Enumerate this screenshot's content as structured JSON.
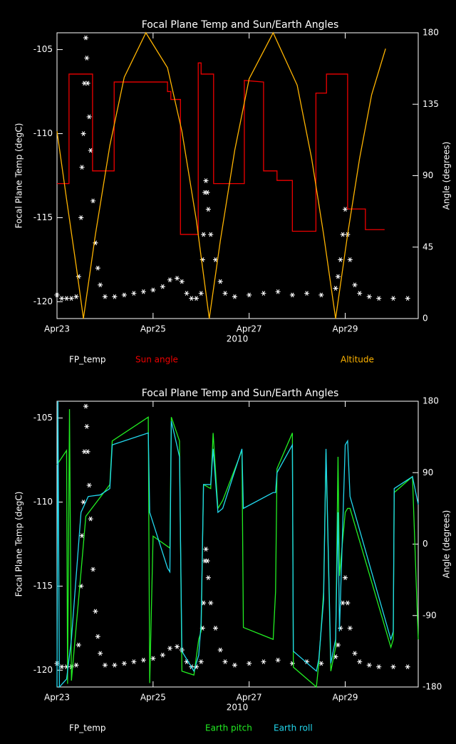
{
  "chart_data": [
    {
      "type": "line",
      "title": "Focal Plane Temp and Sun/Earth Angles",
      "ylabel": "Focal Plane Temp (degC)",
      "y2label": "Angle (degrees)",
      "xlabel": "2010",
      "xlim": [
        23,
        30.52
      ],
      "xticks": [
        {
          "value": 23,
          "label": "Apr23"
        },
        {
          "value": 25,
          "label": "Apr25"
        },
        {
          "value": 27,
          "label": "Apr27"
        },
        {
          "value": 29,
          "label": "Apr29"
        }
      ],
      "ylim": [
        -121,
        -104
      ],
      "yticks": [
        -105,
        -110,
        -115,
        -120
      ],
      "y2lim": [
        0,
        180
      ],
      "y2ticks": [
        0,
        45,
        90,
        135,
        180
      ],
      "series": [
        {
          "name": "FP_temp",
          "color": "#ffffff",
          "marker": "asterisk",
          "x": [
            23.0,
            23.1,
            23.2,
            23.3,
            23.4,
            23.45,
            23.5,
            23.52,
            23.55,
            23.57,
            23.6,
            23.62,
            23.64,
            23.67,
            23.7,
            23.75,
            23.8,
            23.85,
            23.9,
            24.0,
            24.2,
            24.4,
            24.6,
            24.8,
            25.0,
            25.2,
            25.35,
            25.5,
            25.6,
            25.7,
            25.8,
            25.9,
            26.0,
            26.03,
            26.05,
            26.08,
            26.1,
            26.13,
            26.15,
            26.2,
            26.3,
            26.4,
            26.5,
            26.7,
            27.0,
            27.3,
            27.6,
            27.9,
            28.2,
            28.5,
            28.8,
            28.85,
            28.9,
            28.95,
            29.0,
            29.05,
            29.1,
            29.2,
            29.3,
            29.5,
            29.7,
            30.0,
            30.3
          ],
          "values": [
            -119.6,
            -119.8,
            -119.8,
            -119.8,
            -119.7,
            -118.5,
            -115,
            -112,
            -110,
            -107,
            -104.3,
            -105.5,
            -107,
            -109,
            -111,
            -114,
            -116.5,
            -118,
            -119,
            -119.7,
            -119.7,
            -119.6,
            -119.5,
            -119.4,
            -119.3,
            -119.1,
            -118.7,
            -118.6,
            -118.8,
            -119.5,
            -119.8,
            -119.8,
            -119.5,
            -117.5,
            -116,
            -113.5,
            -112.8,
            -113.5,
            -114.5,
            -116,
            -117.5,
            -118.8,
            -119.5,
            -119.7,
            -119.6,
            -119.5,
            -119.4,
            -119.6,
            -119.5,
            -119.6,
            -119.2,
            -118.5,
            -117.5,
            -116,
            -114.5,
            -116,
            -117.5,
            -119,
            -119.5,
            -119.7,
            -119.8,
            -119.8,
            -119.8
          ]
        },
        {
          "name": "Sun angle",
          "color": "#ee0000",
          "axis": "y2",
          "x": [
            23.0,
            23.25,
            23.25,
            23.74,
            23.74,
            24.19,
            24.19,
            25.3,
            25.3,
            25.37,
            25.37,
            25.57,
            25.57,
            25.94,
            25.94,
            26.0,
            26.0,
            26.26,
            26.26,
            26.9,
            26.9,
            27.3,
            27.3,
            27.58,
            27.58,
            27.9,
            27.9,
            28.39,
            28.39,
            28.61,
            28.61,
            29.05,
            29.05,
            29.42,
            29.42,
            29.82
          ],
          "values": [
            85,
            85,
            154,
            154,
            93,
            93,
            149,
            149,
            143,
            143,
            138,
            138,
            53,
            53,
            161,
            161,
            154,
            154,
            85,
            85,
            150,
            149,
            93,
            93,
            87,
            87,
            55,
            55,
            142,
            142,
            154,
            154,
            69,
            69,
            56,
            56
          ]
        },
        {
          "name": "Altitude",
          "color": "#ffb400",
          "axis": "y2",
          "x": [
            23.0,
            23.2,
            23.4,
            23.55,
            23.8,
            24.1,
            24.4,
            24.85,
            25.3,
            25.6,
            25.9,
            26.17,
            26.4,
            26.7,
            27.0,
            27.5,
            28.0,
            28.3,
            28.55,
            28.8,
            29.05,
            29.3,
            29.55,
            29.84
          ],
          "values": [
            118,
            75,
            33,
            0,
            53,
            109,
            152,
            180,
            158,
            118,
            62,
            0,
            49,
            106,
            151,
            180,
            147,
            101,
            53,
            0,
            53,
            101,
            141,
            170
          ]
        }
      ]
    },
    {
      "type": "line",
      "title": "Focal Plane Temp and Sun/Earth Angles",
      "ylabel": "Focal Plane Temp (degC)",
      "y2label": "Angle (degrees)",
      "xlabel": "2010",
      "xlim": [
        23,
        30.52
      ],
      "xticks": [
        {
          "value": 23,
          "label": "Apr23"
        },
        {
          "value": 25,
          "label": "Apr25"
        },
        {
          "value": 27,
          "label": "Apr27"
        },
        {
          "value": 29,
          "label": "Apr29"
        }
      ],
      "ylim": [
        -121,
        -104
      ],
      "yticks": [
        -105,
        -110,
        -115,
        -120
      ],
      "y2lim": [
        -180,
        180
      ],
      "y2ticks": [
        -180,
        -90,
        0,
        90,
        180
      ],
      "series": [
        {
          "name": "FP_temp",
          "color": "#ffffff",
          "marker": "asterisk",
          "x": [
            23.0,
            23.1,
            23.2,
            23.3,
            23.4,
            23.45,
            23.5,
            23.52,
            23.55,
            23.57,
            23.6,
            23.62,
            23.64,
            23.67,
            23.7,
            23.75,
            23.8,
            23.85,
            23.9,
            24.0,
            24.2,
            24.4,
            24.6,
            24.8,
            25.0,
            25.2,
            25.35,
            25.5,
            25.6,
            25.7,
            25.8,
            25.9,
            26.0,
            26.03,
            26.05,
            26.08,
            26.1,
            26.13,
            26.15,
            26.2,
            26.3,
            26.4,
            26.5,
            26.7,
            27.0,
            27.3,
            27.6,
            27.9,
            28.2,
            28.5,
            28.8,
            28.85,
            28.9,
            28.95,
            29.0,
            29.05,
            29.1,
            29.2,
            29.3,
            29.5,
            29.7,
            30.0,
            30.3
          ],
          "values": [
            -119.6,
            -119.8,
            -119.8,
            -119.8,
            -119.7,
            -118.5,
            -115,
            -112,
            -110,
            -107,
            -104.3,
            -105.5,
            -107,
            -109,
            -111,
            -114,
            -116.5,
            -118,
            -119,
            -119.7,
            -119.7,
            -119.6,
            -119.5,
            -119.4,
            -119.3,
            -119.1,
            -118.7,
            -118.6,
            -118.8,
            -119.5,
            -119.8,
            -119.8,
            -119.5,
            -117.5,
            -116,
            -113.5,
            -112.8,
            -113.5,
            -114.5,
            -116,
            -117.5,
            -118.8,
            -119.5,
            -119.7,
            -119.6,
            -119.5,
            -119.4,
            -119.6,
            -119.5,
            -119.6,
            -119.2,
            -118.5,
            -117.5,
            -116,
            -114.5,
            -116,
            -117.5,
            -119,
            -119.5,
            -119.7,
            -119.8,
            -119.8,
            -119.8
          ]
        },
        {
          "name": "Earth pitch",
          "color": "#22ee22",
          "axis": "y2",
          "x": [
            23.0,
            23.2,
            23.22,
            23.26,
            23.3,
            23.5,
            23.6,
            23.85,
            24.1,
            24.15,
            24.9,
            24.93,
            25.0,
            25.35,
            25.38,
            25.55,
            25.6,
            25.85,
            25.95,
            26.0,
            26.05,
            26.2,
            26.25,
            26.35,
            26.45,
            26.85,
            26.88,
            27.5,
            27.55,
            27.58,
            27.9,
            27.92,
            28.4,
            28.45,
            28.55,
            28.6,
            28.7,
            28.8,
            28.85,
            28.88,
            29.0,
            29.05,
            29.1,
            29.95,
            30.0,
            30.02,
            30.4,
            30.52
          ],
          "values": [
            100,
            118,
            -176,
            170,
            -172,
            -35,
            35,
            55,
            75,
            130,
            160,
            -175,
            10,
            -5,
            160,
            130,
            -160,
            -165,
            -120,
            -110,
            75,
            70,
            140,
            45,
            55,
            118,
            -105,
            -120,
            -60,
            95,
            140,
            -155,
            -180,
            -150,
            -60,
            115,
            -160,
            -130,
            110,
            -40,
            40,
            45,
            45,
            -130,
            -120,
            65,
            85,
            -120
          ]
        },
        {
          "name": "Earth roll",
          "color": "#22d8ee",
          "axis": "y2",
          "x": [
            23.0,
            23.02,
            23.05,
            23.2,
            23.3,
            23.5,
            23.65,
            23.9,
            24.1,
            24.15,
            24.9,
            24.93,
            25.3,
            25.35,
            25.38,
            25.55,
            25.6,
            25.85,
            25.95,
            26.0,
            26.05,
            26.2,
            26.25,
            26.35,
            26.45,
            26.85,
            26.88,
            27.5,
            27.55,
            27.58,
            27.9,
            27.92,
            28.4,
            28.45,
            28.55,
            28.6,
            28.7,
            28.8,
            28.85,
            28.88,
            29.0,
            29.05,
            29.1,
            29.95,
            30.0,
            30.02,
            30.4,
            30.52
          ],
          "values": [
            -180,
            180,
            -180,
            -170,
            -120,
            40,
            60,
            62,
            70,
            125,
            140,
            40,
            -30,
            -35,
            155,
            110,
            -135,
            -160,
            -140,
            -100,
            75,
            75,
            120,
            40,
            45,
            120,
            45,
            65,
            65,
            90,
            125,
            -135,
            -160,
            -145,
            -70,
            120,
            -150,
            -120,
            40,
            -110,
            125,
            130,
            60,
            -120,
            -110,
            70,
            85,
            50
          ]
        }
      ]
    }
  ]
}
